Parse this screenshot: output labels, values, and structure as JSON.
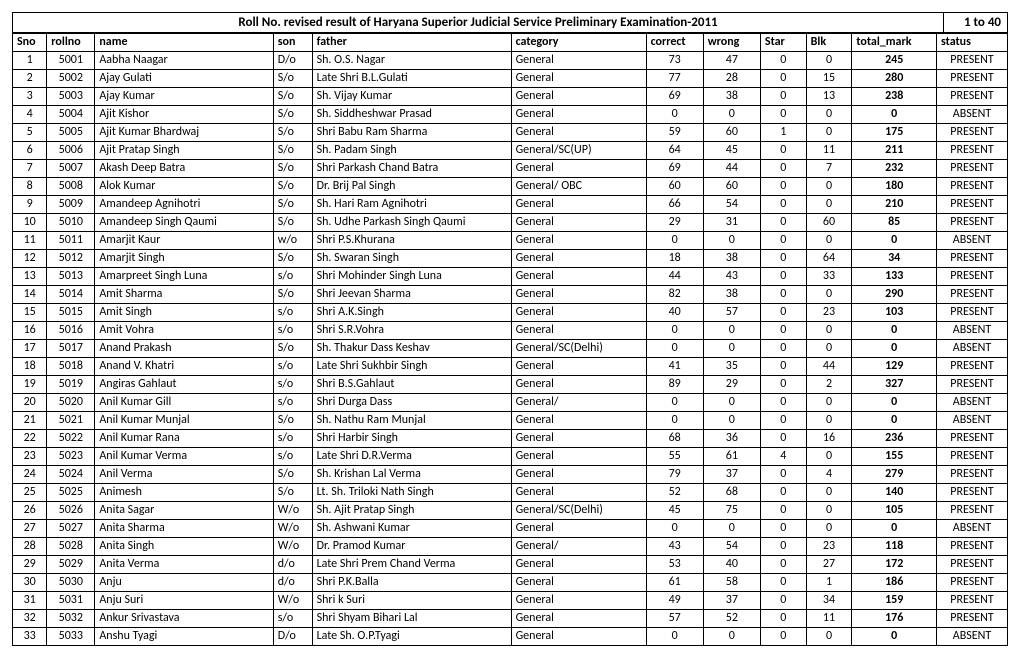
{
  "title": "Roll No. revised result of Haryana Superior Judicial Service Preliminary Examination-2011",
  "range": "1 to 40",
  "columns": [
    "Sno",
    "rollno",
    "name",
    "son",
    "father",
    "category",
    "correct",
    "wrong",
    "Star",
    "Blk",
    "total_mark",
    "status"
  ],
  "rows": [
    {
      "sno": "1",
      "rollno": "5001",
      "name": "Aabha Naagar",
      "son": "D/o",
      "father": "Sh. O.S. Nagar",
      "category": "General",
      "correct": "73",
      "wrong": "47",
      "star": "0",
      "blk": "0",
      "total": "245",
      "status": "PRESENT"
    },
    {
      "sno": "2",
      "rollno": "5002",
      "name": "Ajay Gulati",
      "son": "S/o",
      "father": "Late Shri B.L.Gulati",
      "category": "General",
      "correct": "77",
      "wrong": "28",
      "star": "0",
      "blk": "15",
      "total": "280",
      "status": "PRESENT"
    },
    {
      "sno": "3",
      "rollno": "5003",
      "name": "Ajay Kumar",
      "son": "S/o",
      "father": "Sh. Vijay Kumar",
      "category": "General",
      "correct": "69",
      "wrong": "38",
      "star": "0",
      "blk": "13",
      "total": "238",
      "status": "PRESENT"
    },
    {
      "sno": "4",
      "rollno": "5004",
      "name": "Ajit Kishor",
      "son": "S/o",
      "father": "Sh. Siddheshwar Prasad",
      "category": "General",
      "correct": "0",
      "wrong": "0",
      "star": "0",
      "blk": "0",
      "total": "0",
      "status": "ABSENT"
    },
    {
      "sno": "5",
      "rollno": "5005",
      "name": "Ajit Kumar Bhardwaj",
      "son": "S/o",
      "father": "Shri Babu Ram Sharma",
      "category": "General",
      "correct": "59",
      "wrong": "60",
      "star": "1",
      "blk": "0",
      "total": "175",
      "status": "PRESENT"
    },
    {
      "sno": "6",
      "rollno": "5006",
      "name": "Ajit Pratap Singh",
      "son": "S/o",
      "father": "Sh. Padam Singh",
      "category": "General/SC(UP)",
      "correct": "64",
      "wrong": "45",
      "star": "0",
      "blk": "11",
      "total": "211",
      "status": "PRESENT"
    },
    {
      "sno": "7",
      "rollno": "5007",
      "name": "Akash Deep Batra",
      "son": "S/o",
      "father": "Shri Parkash Chand Batra",
      "category": "General",
      "correct": "69",
      "wrong": "44",
      "star": "0",
      "blk": "7",
      "total": "232",
      "status": "PRESENT"
    },
    {
      "sno": "8",
      "rollno": "5008",
      "name": "Alok Kumar",
      "son": "S/o",
      "father": "Dr. Brij Pal Singh",
      "category": "General/ OBC",
      "correct": "60",
      "wrong": "60",
      "star": "0",
      "blk": "0",
      "total": "180",
      "status": "PRESENT"
    },
    {
      "sno": "9",
      "rollno": "5009",
      "name": "Amandeep Agnihotri",
      "son": "S/o",
      "father": "Sh. Hari Ram Agnihotri",
      "category": "General",
      "correct": "66",
      "wrong": "54",
      "star": "0",
      "blk": "0",
      "total": "210",
      "status": "PRESENT"
    },
    {
      "sno": "10",
      "rollno": "5010",
      "name": "Amandeep Singh Qaumi",
      "son": "S/o",
      "father": "Sh. Udhe Parkash Singh Qaumi",
      "category": "General",
      "correct": "29",
      "wrong": "31",
      "star": "0",
      "blk": "60",
      "total": "85",
      "status": "PRESENT"
    },
    {
      "sno": "11",
      "rollno": "5011",
      "name": "Amarjit Kaur",
      "son": "w/o",
      "father": "Shri P.S.Khurana",
      "category": "General",
      "correct": "0",
      "wrong": "0",
      "star": "0",
      "blk": "0",
      "total": "0",
      "status": "ABSENT"
    },
    {
      "sno": "12",
      "rollno": "5012",
      "name": "Amarjit Singh",
      "son": "S/o",
      "father": "Sh. Swaran Singh",
      "category": "General",
      "correct": "18",
      "wrong": "38",
      "star": "0",
      "blk": "64",
      "total": "34",
      "status": "PRESENT"
    },
    {
      "sno": "13",
      "rollno": "5013",
      "name": "Amarpreet Singh Luna",
      "son": "s/o",
      "father": "Shri Mohinder Singh Luna",
      "category": "General",
      "correct": "44",
      "wrong": "43",
      "star": "0",
      "blk": "33",
      "total": "133",
      "status": "PRESENT"
    },
    {
      "sno": "14",
      "rollno": "5014",
      "name": "Amit Sharma",
      "son": "S/o",
      "father": "Shri Jeevan Sharma",
      "category": "General",
      "correct": "82",
      "wrong": "38",
      "star": "0",
      "blk": "0",
      "total": "290",
      "status": "PRESENT"
    },
    {
      "sno": "15",
      "rollno": "5015",
      "name": "Amit Singh",
      "son": "s/o",
      "father": "Shri A.K.Singh",
      "category": "General",
      "correct": "40",
      "wrong": "57",
      "star": "0",
      "blk": "23",
      "total": "103",
      "status": "PRESENT"
    },
    {
      "sno": "16",
      "rollno": "5016",
      "name": "Amit Vohra",
      "son": "s/o",
      "father": "Shri S.R.Vohra",
      "category": "General",
      "correct": "0",
      "wrong": "0",
      "star": "0",
      "blk": "0",
      "total": "0",
      "status": "ABSENT"
    },
    {
      "sno": "17",
      "rollno": "5017",
      "name": "Anand Prakash",
      "son": "S/o",
      "father": "Sh. Thakur Dass Keshav",
      "category": "General/SC(Delhi)",
      "correct": "0",
      "wrong": "0",
      "star": "0",
      "blk": "0",
      "total": "0",
      "status": "ABSENT"
    },
    {
      "sno": "18",
      "rollno": "5018",
      "name": "Anand V. Khatri",
      "son": "s/o",
      "father": "Late Shri Sukhbir Singh",
      "category": "General",
      "correct": "41",
      "wrong": "35",
      "star": "0",
      "blk": "44",
      "total": "129",
      "status": "PRESENT"
    },
    {
      "sno": "19",
      "rollno": "5019",
      "name": "Angiras Gahlaut",
      "son": "s/o",
      "father": "Shri B.S.Gahlaut",
      "category": "General",
      "correct": "89",
      "wrong": "29",
      "star": "0",
      "blk": "2",
      "total": "327",
      "status": "PRESENT"
    },
    {
      "sno": "20",
      "rollno": "5020",
      "name": "Anil Kumar Gill",
      "son": "s/o",
      "father": "Shri Durga Dass",
      "category": "General/",
      "correct": "0",
      "wrong": "0",
      "star": "0",
      "blk": "0",
      "total": "0",
      "status": "ABSENT"
    },
    {
      "sno": "21",
      "rollno": "5021",
      "name": "Anil Kumar Munjal",
      "son": "S/o",
      "father": "Sh. Nathu Ram Munjal",
      "category": "General",
      "correct": "0",
      "wrong": "0",
      "star": "0",
      "blk": "0",
      "total": "0",
      "status": "ABSENT"
    },
    {
      "sno": "22",
      "rollno": "5022",
      "name": "Anil Kumar Rana",
      "son": "s/o",
      "father": "Shri Harbir Singh",
      "category": "General",
      "correct": "68",
      "wrong": "36",
      "star": "0",
      "blk": "16",
      "total": "236",
      "status": "PRESENT"
    },
    {
      "sno": "23",
      "rollno": "5023",
      "name": "Anil Kumar Verma",
      "son": "s/o",
      "father": "Late Shri D.R.Verma",
      "category": "General",
      "correct": "55",
      "wrong": "61",
      "star": "4",
      "blk": "0",
      "total": "155",
      "status": "PRESENT"
    },
    {
      "sno": "24",
      "rollno": "5024",
      "name": "Anil Verma",
      "son": "S/o",
      "father": "Sh. Krishan Lal Verma",
      "category": "General",
      "correct": "79",
      "wrong": "37",
      "star": "0",
      "blk": "4",
      "total": "279",
      "status": "PRESENT"
    },
    {
      "sno": "25",
      "rollno": "5025",
      "name": "Animesh",
      "son": "S/o",
      "father": "Lt. Sh. Triloki Nath Singh",
      "category": "General",
      "correct": "52",
      "wrong": "68",
      "star": "0",
      "blk": "0",
      "total": "140",
      "status": "PRESENT"
    },
    {
      "sno": "26",
      "rollno": "5026",
      "name": "Anita Sagar",
      "son": "W/o",
      "father": "Sh. Ajit Pratap Singh",
      "category": "General/SC(Delhi)",
      "correct": "45",
      "wrong": "75",
      "star": "0",
      "blk": "0",
      "total": "105",
      "status": "PRESENT"
    },
    {
      "sno": "27",
      "rollno": "5027",
      "name": "Anita Sharma",
      "son": "W/o",
      "father": "Sh. Ashwani Kumar",
      "category": "General",
      "correct": "0",
      "wrong": "0",
      "star": "0",
      "blk": "0",
      "total": "0",
      "status": "ABSENT"
    },
    {
      "sno": "28",
      "rollno": "5028",
      "name": "Anita Singh",
      "son": "W/o",
      "father": "Dr. Pramod Kumar",
      "category": "General/",
      "correct": "43",
      "wrong": "54",
      "star": "0",
      "blk": "23",
      "total": "118",
      "status": "PRESENT"
    },
    {
      "sno": "29",
      "rollno": "5029",
      "name": "Anita Verma",
      "son": "d/o",
      "father": "Late Shri Prem Chand Verma",
      "category": "General",
      "correct": "53",
      "wrong": "40",
      "star": "0",
      "blk": "27",
      "total": "172",
      "status": "PRESENT"
    },
    {
      "sno": "30",
      "rollno": "5030",
      "name": "Anju",
      "son": "d/o",
      "father": "Shri P.K.Balla",
      "category": "General",
      "correct": "61",
      "wrong": "58",
      "star": "0",
      "blk": "1",
      "total": "186",
      "status": "PRESENT"
    },
    {
      "sno": "31",
      "rollno": "5031",
      "name": "Anju Suri",
      "son": "W/o",
      "father": "Shri k Suri",
      "category": "General",
      "correct": "49",
      "wrong": "37",
      "star": "0",
      "blk": "34",
      "total": "159",
      "status": "PRESENT"
    },
    {
      "sno": "32",
      "rollno": "5032",
      "name": "Ankur Srivastava",
      "son": "s/o",
      "father": "Shri Shyam Bihari Lal",
      "category": "General",
      "correct": "57",
      "wrong": "52",
      "star": "0",
      "blk": "11",
      "total": "176",
      "status": "PRESENT"
    },
    {
      "sno": "33",
      "rollno": "5033",
      "name": "Anshu Tyagi",
      "son": "D/o",
      "father": "Late Sh. O.P.Tyagi",
      "category": "General",
      "correct": "0",
      "wrong": "0",
      "star": "0",
      "blk": "0",
      "total": "0",
      "status": "ABSENT"
    }
  ]
}
